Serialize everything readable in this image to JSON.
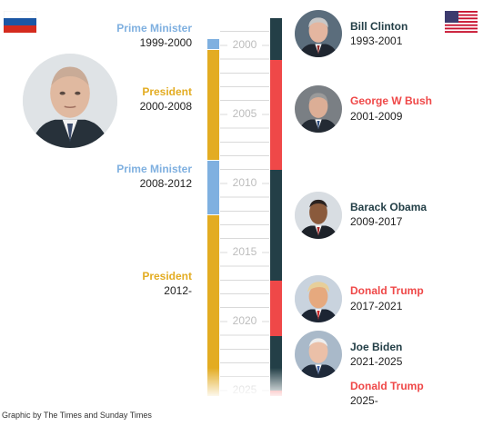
{
  "colors": {
    "pm": "#7fb0e0",
    "president_ru": "#e3ac22",
    "us_dem": "#233f47",
    "us_rep": "#ef4848",
    "axis_year": "#bdbdbd"
  },
  "flags": {
    "left": "russia-flag-icon",
    "right": "usa-flag-icon"
  },
  "axis": {
    "start_year": 1998.1,
    "end_year": 2025.5,
    "ticks": [
      "2000",
      "2005",
      "2010",
      "2015",
      "2020",
      "2025"
    ]
  },
  "russia": [
    {
      "role": "Prime Minister",
      "years": "1999-2000",
      "from": 1999.6,
      "to": 2000.4,
      "kind": "pm"
    },
    {
      "role": "President",
      "years": "2000-2008",
      "from": 2000.4,
      "to": 2008.4,
      "kind": "president"
    },
    {
      "role": "Prime Minister",
      "years": "2008-2012",
      "from": 2008.4,
      "to": 2012.4,
      "kind": "pm"
    },
    {
      "role": "President",
      "years": "2012-",
      "from": 2012.4,
      "to": 2025.5,
      "kind": "president"
    }
  ],
  "usa": [
    {
      "name": "Bill Clinton",
      "years": "1993-2001",
      "from": 1998.1,
      "to": 2001.1,
      "party": "dem"
    },
    {
      "name": "George W Bush",
      "years": "2001-2009",
      "from": 2001.1,
      "to": 2009.1,
      "party": "rep"
    },
    {
      "name": "Barack Obama",
      "years": "2009-2017",
      "from": 2009.1,
      "to": 2017.1,
      "party": "dem"
    },
    {
      "name": "Donald Trump",
      "years": "2017-2021",
      "from": 2017.1,
      "to": 2021.1,
      "party": "rep"
    },
    {
      "name": "Joe Biden",
      "years": "2021-2025",
      "from": 2021.1,
      "to": 2025.1,
      "party": "dem"
    },
    {
      "name": "Donald Trump",
      "years": "2025-",
      "from": 2025.1,
      "to": 2025.5,
      "party": "rep"
    }
  ],
  "credit": "Graphic by The Times and Sunday Times"
}
